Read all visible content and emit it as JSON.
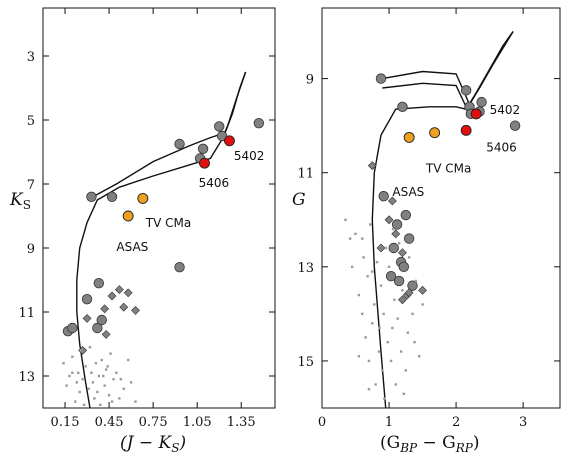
{
  "chart_data": [
    {
      "type": "scatter",
      "xlabel": "(J − K",
      "xlabel_sub": "S",
      "xlabel_tail": ")",
      "ylabel": "K",
      "ylabel_sub": "S",
      "xlim": [
        0.0,
        1.58
      ],
      "ylim": [
        14.0,
        1.5
      ],
      "y_inverted": true,
      "xticks": [
        0.15,
        0.45,
        0.75,
        1.05,
        1.35
      ],
      "xtick_labels": [
        "0.15",
        "0.45",
        "0.75",
        "1.05",
        "1.35"
      ],
      "yticks": [
        3,
        5,
        7,
        9,
        11,
        13
      ],
      "ytick_labels": [
        "3",
        "5",
        "7",
        "9",
        "11",
        "13"
      ],
      "isochrones": [
        [
          [
            0.32,
            14.0
          ],
          [
            0.29,
            13.2
          ],
          [
            0.25,
            12.0
          ],
          [
            0.23,
            11.0
          ],
          [
            0.23,
            10.0
          ],
          [
            0.25,
            9.0
          ],
          [
            0.3,
            8.2
          ],
          [
            0.37,
            7.5
          ],
          [
            0.52,
            7.1
          ],
          [
            0.75,
            6.75
          ],
          [
            1.0,
            6.4
          ],
          [
            1.14,
            6.2
          ],
          [
            1.18,
            5.9
          ],
          [
            1.22,
            5.6
          ],
          [
            1.26,
            5.15
          ],
          [
            1.32,
            4.3
          ],
          [
            1.38,
            3.5
          ]
        ],
        [
          [
            0.34,
            7.4
          ],
          [
            0.5,
            7.0
          ],
          [
            0.75,
            6.3
          ],
          [
            1.0,
            5.8
          ],
          [
            1.14,
            5.55
          ],
          [
            1.24,
            5.4
          ],
          [
            1.29,
            4.8
          ],
          [
            1.34,
            4.0
          ],
          [
            1.38,
            3.5
          ]
        ]
      ],
      "series": [
        {
          "kind": "giants",
          "color": "#808080",
          "points": [
            [
              0.33,
              7.4
            ],
            [
              0.47,
              7.4
            ],
            [
              0.93,
              5.75
            ],
            [
              1.07,
              6.2
            ],
            [
              1.09,
              5.9
            ],
            [
              1.2,
              5.2
            ],
            [
              1.22,
              5.5
            ],
            [
              1.47,
              5.1
            ],
            [
              0.17,
              11.6
            ],
            [
              0.2,
              11.5
            ],
            [
              0.37,
              11.5
            ],
            [
              0.4,
              11.25
            ],
            [
              0.3,
              10.6
            ],
            [
              0.38,
              10.1
            ],
            [
              0.93,
              9.6
            ]
          ]
        },
        {
          "kind": "diamonds",
          "color": "#808080",
          "points": [
            [
              0.27,
              12.2
            ],
            [
              0.43,
              11.7
            ],
            [
              0.47,
              10.5
            ],
            [
              0.52,
              10.3
            ],
            [
              0.55,
              10.85
            ],
            [
              0.58,
              10.4
            ],
            [
              0.63,
              10.95
            ],
            [
              0.3,
              11.2
            ],
            [
              0.42,
              10.9
            ]
          ]
        },
        {
          "kind": "dwarfs",
          "color": "#9a9a9a",
          "points": [
            [
              0.14,
              12.6
            ],
            [
              0.16,
              13.3
            ],
            [
              0.18,
              13.0
            ],
            [
              0.2,
              12.4
            ],
            [
              0.22,
              13.8
            ],
            [
              0.24,
              12.9
            ],
            [
              0.25,
              13.5
            ],
            [
              0.26,
              12.2
            ],
            [
              0.27,
              13.1
            ],
            [
              0.28,
              13.9
            ],
            [
              0.29,
              12.7
            ],
            [
              0.31,
              13.4
            ],
            [
              0.32,
              12.1
            ],
            [
              0.34,
              13.2
            ],
            [
              0.35,
              13.7
            ],
            [
              0.36,
              12.6
            ],
            [
              0.38,
              13.0
            ],
            [
              0.39,
              13.9
            ],
            [
              0.4,
              12.5
            ],
            [
              0.42,
              13.3
            ],
            [
              0.43,
              12.8
            ],
            [
              0.45,
              13.6
            ],
            [
              0.46,
              12.3
            ],
            [
              0.48,
              13.1
            ],
            [
              0.5,
              12.9
            ],
            [
              0.52,
              13.7
            ],
            [
              0.55,
              13.4
            ],
            [
              0.58,
              12.5
            ],
            [
              0.6,
              13.2
            ],
            [
              0.63,
              13.8
            ],
            [
              0.2,
              12.9
            ],
            [
              0.23,
              13.2
            ],
            [
              0.33,
              12.9
            ],
            [
              0.37,
              13.5
            ],
            [
              0.41,
              13.0
            ],
            [
              0.44,
              12.7
            ],
            [
              0.47,
              13.8
            ],
            [
              0.53,
              13.1
            ]
          ]
        },
        {
          "kind": "TV CMa",
          "color": "#f0a020",
          "points": [
            [
              0.68,
              7.45
            ]
          ]
        },
        {
          "kind": "ASAS",
          "color": "#f0a020",
          "points": [
            [
              0.58,
              8.0
            ]
          ]
        },
        {
          "kind": "5402",
          "color": "#e01010",
          "points": [
            [
              1.27,
              5.65
            ]
          ]
        },
        {
          "kind": "5406",
          "color": "#e01010",
          "points": [
            [
              1.1,
              6.35
            ]
          ]
        }
      ],
      "annotations": [
        {
          "text": "5402",
          "x": 1.3,
          "y": 6.25
        },
        {
          "text": "5406",
          "x": 1.06,
          "y": 7.1
        },
        {
          "text": "TV CMa",
          "x": 0.7,
          "y": 8.35
        },
        {
          "text": "ASAS",
          "x": 0.5,
          "y": 9.1
        }
      ]
    },
    {
      "type": "scatter",
      "xlabel": "(G",
      "xlabel_sub": "BP",
      "xlabel_mid": " − G",
      "xlabel_sub2": "RP",
      "xlabel_tail": ")",
      "ylabel": "G",
      "xlim": [
        0.0,
        3.55
      ],
      "ylim": [
        16.0,
        7.5
      ],
      "y_inverted": true,
      "xticks": [
        0,
        1,
        2,
        3
      ],
      "xtick_labels": [
        "0",
        "1",
        "2",
        "3"
      ],
      "yticks": [
        9,
        11,
        13,
        15
      ],
      "ytick_labels": [
        "9",
        "11",
        "13",
        "15"
      ],
      "isochrones": [
        [
          [
            0.95,
            16.0
          ],
          [
            0.88,
            14.8
          ],
          [
            0.78,
            13.0
          ],
          [
            0.75,
            12.0
          ],
          [
            0.78,
            11.0
          ],
          [
            0.88,
            10.2
          ],
          [
            1.1,
            9.65
          ],
          [
            1.6,
            9.6
          ],
          [
            2.0,
            9.6
          ],
          [
            2.15,
            9.65
          ],
          [
            2.3,
            9.3
          ],
          [
            2.5,
            8.8
          ],
          [
            2.7,
            8.3
          ],
          [
            2.85,
            8.0
          ]
        ],
        [
          [
            0.9,
            9.0
          ],
          [
            1.5,
            8.85
          ],
          [
            2.0,
            8.9
          ],
          [
            2.2,
            9.55
          ],
          [
            2.35,
            9.2
          ],
          [
            2.55,
            8.7
          ],
          [
            2.85,
            8.0
          ]
        ],
        [
          [
            0.9,
            9.2
          ],
          [
            1.5,
            9.1
          ],
          [
            2.0,
            9.15
          ],
          [
            2.15,
            9.6
          ]
        ]
      ],
      "series": [
        {
          "kind": "giants",
          "color": "#808080",
          "points": [
            [
              0.88,
              9.0
            ],
            [
              1.2,
              9.6
            ],
            [
              2.15,
              9.25
            ],
            [
              2.2,
              9.6
            ],
            [
              2.22,
              9.75
            ],
            [
              2.35,
              9.7
            ],
            [
              2.38,
              9.5
            ],
            [
              2.88,
              10.0
            ],
            [
              1.03,
              13.2
            ],
            [
              1.07,
              12.6
            ],
            [
              1.12,
              12.1
            ],
            [
              1.15,
              13.3
            ],
            [
              1.18,
              12.9
            ],
            [
              1.22,
              13.0
            ],
            [
              1.25,
              11.9
            ],
            [
              1.3,
              12.4
            ],
            [
              1.35,
              13.4
            ],
            [
              0.92,
              11.5
            ]
          ]
        },
        {
          "kind": "diamonds",
          "color": "#808080",
          "points": [
            [
              0.75,
              10.85
            ],
            [
              1.05,
              11.6
            ],
            [
              1.1,
              12.3
            ],
            [
              1.2,
              12.7
            ],
            [
              1.27,
              13.6
            ],
            [
              1.3,
              13.55
            ],
            [
              1.2,
              13.7
            ],
            [
              1.5,
              13.5
            ],
            [
              0.88,
              12.6
            ],
            [
              1.0,
              12.0
            ]
          ]
        },
        {
          "kind": "dwarfs",
          "color": "#9a9a9a",
          "points": [
            [
              0.35,
              12.0
            ],
            [
              0.42,
              12.4
            ],
            [
              0.45,
              13.0
            ],
            [
              0.5,
              12.3
            ],
            [
              0.55,
              13.6
            ],
            [
              0.6,
              14.0
            ],
            [
              0.62,
              12.8
            ],
            [
              0.65,
              14.5
            ],
            [
              0.68,
              13.2
            ],
            [
              0.7,
              15.0
            ],
            [
              0.72,
              12.1
            ],
            [
              0.75,
              14.2
            ],
            [
              0.78,
              13.8
            ],
            [
              0.8,
              15.5
            ],
            [
              0.82,
              12.9
            ],
            [
              0.85,
              14.8
            ],
            [
              0.88,
              13.4
            ],
            [
              0.9,
              15.2
            ],
            [
              0.92,
              14.0
            ],
            [
              0.95,
              12.6
            ],
            [
              0.98,
              14.6
            ],
            [
              1.0,
              13.0
            ],
            [
              1.03,
              15.0
            ],
            [
              1.05,
              14.3
            ],
            [
              1.08,
              13.7
            ],
            [
              1.1,
              15.5
            ],
            [
              1.13,
              14.1
            ],
            [
              1.15,
              12.5
            ],
            [
              1.18,
              14.8
            ],
            [
              1.2,
              13.5
            ],
            [
              1.25,
              15.2
            ],
            [
              1.28,
              14.4
            ],
            [
              1.3,
              12.8
            ],
            [
              1.35,
              14.0
            ],
            [
              1.4,
              13.3
            ],
            [
              1.45,
              14.9
            ],
            [
              1.5,
              13.8
            ],
            [
              0.6,
              12.4
            ],
            [
              0.75,
              13.1
            ],
            [
              0.86,
              14.3
            ],
            [
              0.93,
              15.8
            ],
            [
              1.06,
              12.2
            ],
            [
              1.22,
              15.7
            ],
            [
              1.38,
              14.6
            ],
            [
              0.55,
              14.9
            ],
            [
              0.7,
              15.6
            ]
          ]
        },
        {
          "kind": "TV CMa",
          "color": "#f0a020",
          "points": [
            [
              1.68,
              10.15
            ]
          ]
        },
        {
          "kind": "ASAS",
          "color": "#f0a020",
          "points": [
            [
              1.3,
              10.25
            ]
          ]
        },
        {
          "kind": "5402",
          "color": "#e01010",
          "points": [
            [
              2.3,
              9.75
            ]
          ]
        },
        {
          "kind": "5406",
          "color": "#e01010",
          "points": [
            [
              2.15,
              10.1
            ]
          ]
        }
      ],
      "annotations": [
        {
          "text": "5402",
          "x": 2.5,
          "y": 9.75
        },
        {
          "text": "5406",
          "x": 2.45,
          "y": 10.55
        },
        {
          "text": "TV CMa",
          "x": 1.55,
          "y": 11.0
        },
        {
          "text": "ASAS",
          "x": 1.05,
          "y": 11.5
        }
      ]
    }
  ]
}
